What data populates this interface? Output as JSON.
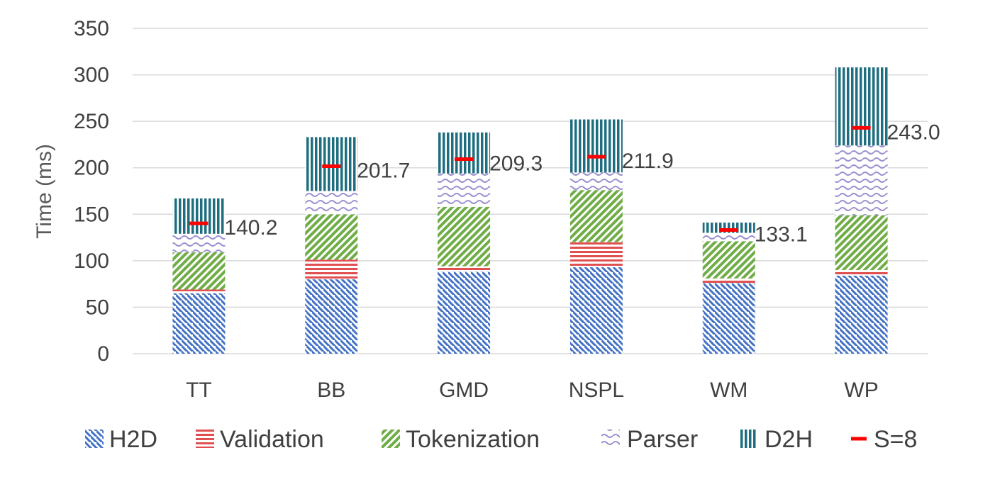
{
  "chart_data": {
    "type": "bar",
    "stacked": true,
    "categories": [
      "TT",
      "BB",
      "GMD",
      "NSPL",
      "WM",
      "WP"
    ],
    "series": [
      {
        "name": "H2D",
        "values": [
          65,
          80,
          88,
          93,
          76,
          84
        ],
        "color": "#4472C4",
        "pattern": "diagonal-down"
      },
      {
        "name": "Validation",
        "values": [
          4,
          21,
          6,
          27,
          5,
          6
        ],
        "color": "#E05050",
        "pattern": "horizontal"
      },
      {
        "name": "Tokenization",
        "values": [
          40,
          49,
          64,
          56,
          40,
          59
        ],
        "color": "#70AD47",
        "pattern": "diagonal-up"
      },
      {
        "name": "Parser",
        "values": [
          20,
          25,
          36,
          19,
          9,
          75
        ],
        "color": "#9B8FCF",
        "pattern": "wave"
      },
      {
        "name": "D2H",
        "values": [
          38,
          58,
          44,
          57,
          11,
          84
        ],
        "color": "#1F6E80",
        "pattern": "vertical"
      }
    ],
    "markers": {
      "name": "S=8",
      "color": "#FF0000",
      "values": [
        140.2,
        201.7,
        209.3,
        211.9,
        133.1,
        243.0
      ],
      "labels": [
        "140.2",
        "201.7",
        "209.3",
        "211.9",
        "133.1",
        "243.0"
      ]
    },
    "ylabel": "Time (ms)",
    "xlabel": "",
    "ylim": [
      0,
      350
    ],
    "yticks": [
      0,
      50,
      100,
      150,
      200,
      250,
      300,
      350
    ],
    "grid": true,
    "legend": "bottom"
  }
}
